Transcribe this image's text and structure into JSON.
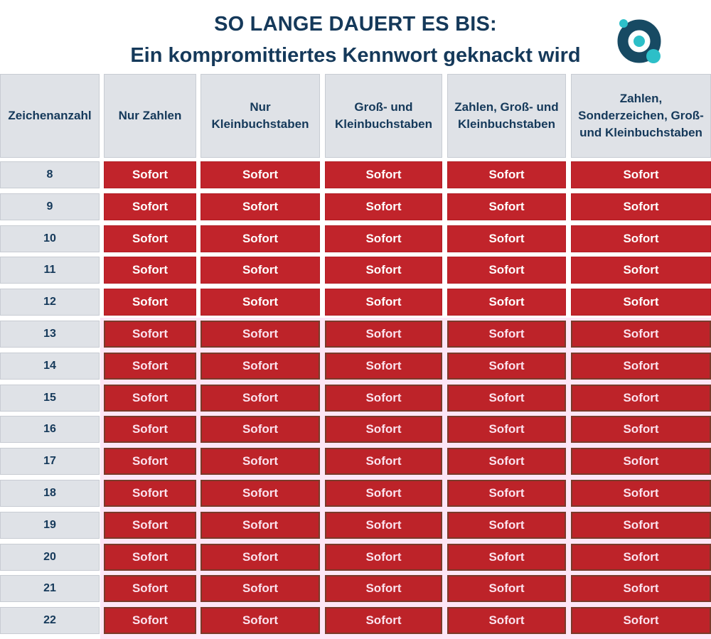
{
  "header": {
    "title_line1": "SO LANGE DAUERT ES BIS:",
    "title_line2": "Ein kompromittiertes Kennwort geknackt wird",
    "logo": "circle-ring-logo-icon"
  },
  "colors": {
    "title": "#15395a",
    "header_bg": "#dfe2e7",
    "cell_red": "#c1242b",
    "logo_navy": "#174a63",
    "logo_teal": "#2dbfc8"
  },
  "columns": [
    "Zeichenanzahl",
    "Nur Zahlen",
    "Nur Kleinbuchstaben",
    "Groß- und Kleinbuchstaben",
    "Zahlen, Groß- und Kleinbuchstaben",
    "Zahlen, Sonderzeichen, Groß- und Kleinbuchstaben"
  ],
  "rows": [
    {
      "chars": "8",
      "values": [
        "Sofort",
        "Sofort",
        "Sofort",
        "Sofort",
        "Sofort"
      ]
    },
    {
      "chars": "9",
      "values": [
        "Sofort",
        "Sofort",
        "Sofort",
        "Sofort",
        "Sofort"
      ]
    },
    {
      "chars": "10",
      "values": [
        "Sofort",
        "Sofort",
        "Sofort",
        "Sofort",
        "Sofort"
      ]
    },
    {
      "chars": "11",
      "values": [
        "Sofort",
        "Sofort",
        "Sofort",
        "Sofort",
        "Sofort"
      ]
    },
    {
      "chars": "12",
      "values": [
        "Sofort",
        "Sofort",
        "Sofort",
        "Sofort",
        "Sofort"
      ]
    },
    {
      "chars": "13",
      "values": [
        "Sofort",
        "Sofort",
        "Sofort",
        "Sofort",
        "Sofort"
      ]
    },
    {
      "chars": "14",
      "values": [
        "Sofort",
        "Sofort",
        "Sofort",
        "Sofort",
        "Sofort"
      ]
    },
    {
      "chars": "15",
      "values": [
        "Sofort",
        "Sofort",
        "Sofort",
        "Sofort",
        "Sofort"
      ]
    },
    {
      "chars": "16",
      "values": [
        "Sofort",
        "Sofort",
        "Sofort",
        "Sofort",
        "Sofort"
      ]
    },
    {
      "chars": "17",
      "values": [
        "Sofort",
        "Sofort",
        "Sofort",
        "Sofort",
        "Sofort"
      ]
    },
    {
      "chars": "18",
      "values": [
        "Sofort",
        "Sofort",
        "Sofort",
        "Sofort",
        "Sofort"
      ]
    },
    {
      "chars": "19",
      "values": [
        "Sofort",
        "Sofort",
        "Sofort",
        "Sofort",
        "Sofort"
      ]
    },
    {
      "chars": "20",
      "values": [
        "Sofort",
        "Sofort",
        "Sofort",
        "Sofort",
        "Sofort"
      ]
    },
    {
      "chars": "21",
      "values": [
        "Sofort",
        "Sofort",
        "Sofort",
        "Sofort",
        "Sofort"
      ]
    },
    {
      "chars": "22",
      "values": [
        "Sofort",
        "Sofort",
        "Sofort",
        "Sofort",
        "Sofort"
      ]
    }
  ],
  "chart_data": {
    "type": "table",
    "title": "SO LANGE DAUERT ES BIS: Ein kompromittiertes Kennwort geknackt wird",
    "columns": [
      "Zeichenanzahl",
      "Nur Zahlen",
      "Nur Kleinbuchstaben",
      "Groß- und Kleinbuchstaben",
      "Zahlen, Groß- und Kleinbuchstaben",
      "Zahlen, Sonderzeichen, Groß- und Kleinbuchstaben"
    ],
    "row_labels": [
      "8",
      "9",
      "10",
      "11",
      "12",
      "13",
      "14",
      "15",
      "16",
      "17",
      "18",
      "19",
      "20",
      "21",
      "22"
    ],
    "cells": [
      [
        "Sofort",
        "Sofort",
        "Sofort",
        "Sofort",
        "Sofort"
      ],
      [
        "Sofort",
        "Sofort",
        "Sofort",
        "Sofort",
        "Sofort"
      ],
      [
        "Sofort",
        "Sofort",
        "Sofort",
        "Sofort",
        "Sofort"
      ],
      [
        "Sofort",
        "Sofort",
        "Sofort",
        "Sofort",
        "Sofort"
      ],
      [
        "Sofort",
        "Sofort",
        "Sofort",
        "Sofort",
        "Sofort"
      ],
      [
        "Sofort",
        "Sofort",
        "Sofort",
        "Sofort",
        "Sofort"
      ],
      [
        "Sofort",
        "Sofort",
        "Sofort",
        "Sofort",
        "Sofort"
      ],
      [
        "Sofort",
        "Sofort",
        "Sofort",
        "Sofort",
        "Sofort"
      ],
      [
        "Sofort",
        "Sofort",
        "Sofort",
        "Sofort",
        "Sofort"
      ],
      [
        "Sofort",
        "Sofort",
        "Sofort",
        "Sofort",
        "Sofort"
      ],
      [
        "Sofort",
        "Sofort",
        "Sofort",
        "Sofort",
        "Sofort"
      ],
      [
        "Sofort",
        "Sofort",
        "Sofort",
        "Sofort",
        "Sofort"
      ],
      [
        "Sofort",
        "Sofort",
        "Sofort",
        "Sofort",
        "Sofort"
      ],
      [
        "Sofort",
        "Sofort",
        "Sofort",
        "Sofort",
        "Sofort"
      ],
      [
        "Sofort",
        "Sofort",
        "Sofort",
        "Sofort",
        "Sofort"
      ]
    ]
  }
}
